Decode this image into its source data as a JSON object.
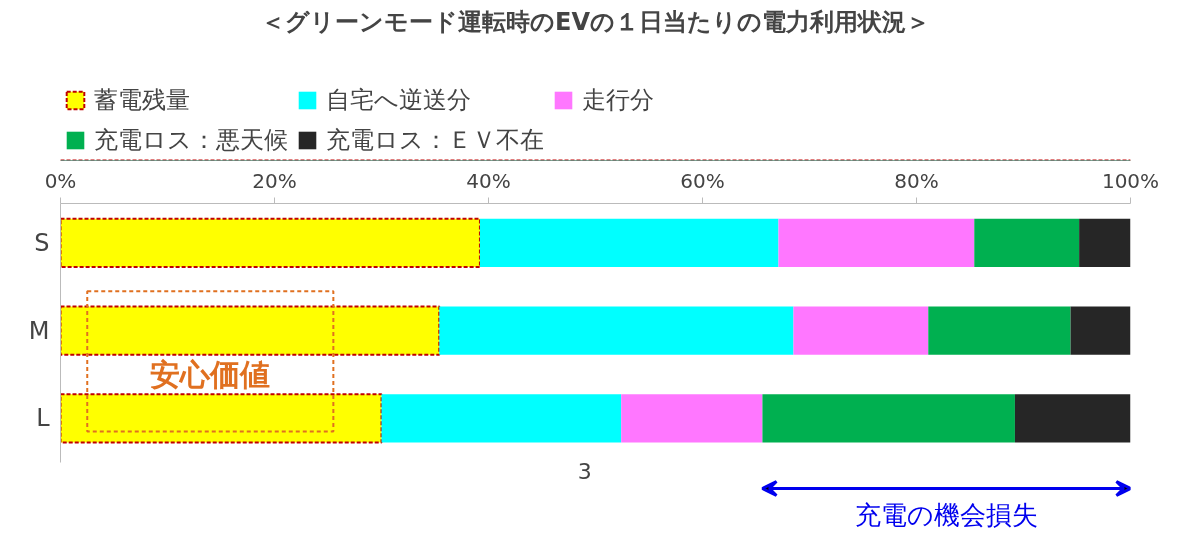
{
  "chart_data": {
    "type": "bar",
    "orientation": "horizontal",
    "stacked": true,
    "title": "＜グリーンモード運転時のEVの１日当たりの電力利用状況＞",
    "categories": [
      "S",
      "M",
      "L"
    ],
    "series": [
      {
        "name": "蓄電残量",
        "color": "#ffff00",
        "line_style": "dashed",
        "values": [
          39.2,
          35.4,
          30.0
        ]
      },
      {
        "name": "自宅へ逆送分",
        "color": "#00ffff",
        "values": [
          27.9,
          33.1,
          22.4
        ]
      },
      {
        "name": "走行分",
        "color": "#ff77ff",
        "values": [
          18.3,
          12.6,
          13.2
        ]
      },
      {
        "name": "充電ロス：悪天候",
        "color": "#00b050",
        "values": [
          9.8,
          13.3,
          23.6
        ]
      },
      {
        "name": "充電ロス：ＥＶ不在",
        "color": "#262626",
        "values": [
          4.8,
          5.6,
          10.8
        ]
      }
    ],
    "xlim": [
      0,
      100
    ],
    "xticks": [
      {
        "value": 0,
        "label": "0%"
      },
      {
        "value": 20,
        "label": "20%"
      },
      {
        "value": 40,
        "label": "40%"
      },
      {
        "value": 60,
        "label": "60%"
      },
      {
        "value": 80,
        "label": "80%"
      },
      {
        "value": 100,
        "label": "100%"
      }
    ],
    "legend": "top",
    "grid": false,
    "annotations": [
      "安心価値",
      "3",
      "充電の機会損失"
    ]
  }
}
